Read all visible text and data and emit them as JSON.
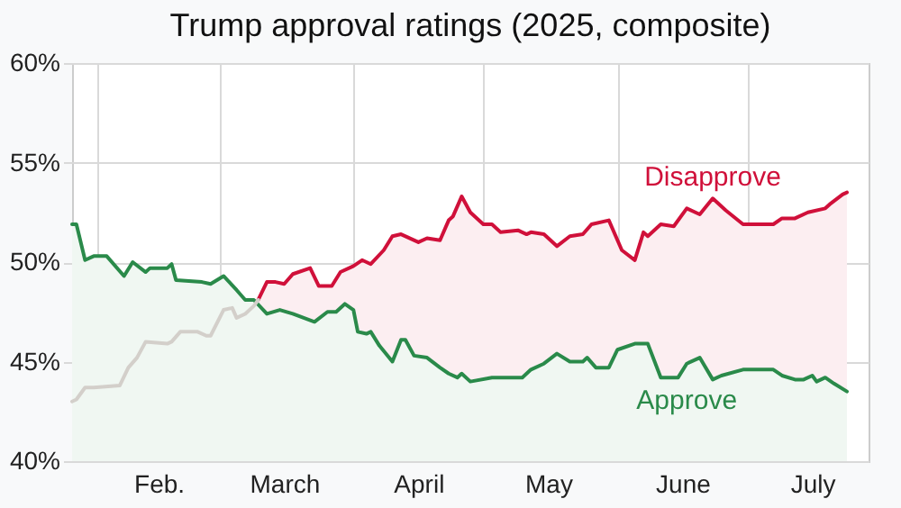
{
  "chart_data": {
    "type": "area",
    "title": "Trump approval ratings (2025, composite)",
    "xlim": [
      "2025-01-26",
      "2025-07-29"
    ],
    "xticks": [
      {
        "value": "2025-02-01",
        "label": null
      },
      {
        "value": "2025-02-15",
        "label": "Feb."
      },
      {
        "value": "2025-03-01",
        "label": null
      },
      {
        "value": "2025-03-16",
        "label": "March"
      },
      {
        "value": "2025-04-01",
        "label": null
      },
      {
        "value": "2025-04-16",
        "label": "April"
      },
      {
        "value": "2025-05-01",
        "label": null
      },
      {
        "value": "2025-05-16",
        "label": "May"
      },
      {
        "value": "2025-06-01",
        "label": null
      },
      {
        "value": "2025-06-16",
        "label": "June"
      },
      {
        "value": "2025-07-01",
        "label": null
      },
      {
        "value": "2025-07-16",
        "label": "July"
      }
    ],
    "ylim": [
      40,
      60
    ],
    "yticks": [
      {
        "value": 40,
        "label": "40%"
      },
      {
        "value": 45,
        "label": "45%"
      },
      {
        "value": 50,
        "label": "50%"
      },
      {
        "value": 55,
        "label": "55%"
      },
      {
        "value": 60,
        "label": "60%"
      }
    ],
    "grid": true,
    "series": [
      {
        "name": "Disapprove",
        "color": "#d0103a",
        "x": [
          "2025-03-10",
          "2025-03-12",
          "2025-03-14",
          "2025-03-16",
          "2025-03-18",
          "2025-03-22",
          "2025-03-24",
          "2025-03-27",
          "2025-03-29",
          "2025-04-01",
          "2025-04-03",
          "2025-04-05",
          "2025-04-08",
          "2025-04-10",
          "2025-04-12",
          "2025-04-16",
          "2025-04-18",
          "2025-04-21",
          "2025-04-23",
          "2025-04-24",
          "2025-04-26",
          "2025-04-28",
          "2025-05-01",
          "2025-05-03",
          "2025-05-05",
          "2025-05-09",
          "2025-05-11",
          "2025-05-12",
          "2025-05-15",
          "2025-05-18",
          "2025-05-21",
          "2025-05-24",
          "2025-05-26",
          "2025-05-30",
          "2025-06-02",
          "2025-06-05",
          "2025-06-07",
          "2025-06-08",
          "2025-06-11",
          "2025-06-14",
          "2025-06-17",
          "2025-06-20",
          "2025-06-23",
          "2025-06-26",
          "2025-06-30",
          "2025-07-07",
          "2025-07-09",
          "2025-07-12",
          "2025-07-15",
          "2025-07-19",
          "2025-07-20",
          "2025-07-23",
          "2025-07-24"
        ],
        "values": [
          48.1,
          49.0,
          49.0,
          48.9,
          49.4,
          49.7,
          48.8,
          48.8,
          49.5,
          49.8,
          50.1,
          49.9,
          50.6,
          51.3,
          51.4,
          51.0,
          51.2,
          51.1,
          52.1,
          52.3,
          53.3,
          52.5,
          51.9,
          51.9,
          51.5,
          51.6,
          51.4,
          51.5,
          51.4,
          50.8,
          51.3,
          51.4,
          51.9,
          52.1,
          50.6,
          50.1,
          51.5,
          51.3,
          51.9,
          51.8,
          52.7,
          52.4,
          53.2,
          52.6,
          51.9,
          51.9,
          52.2,
          52.2,
          52.5,
          52.7,
          52.9,
          53.4,
          53.5
        ]
      },
      {
        "name": "Approve",
        "color": "#2a8a4a",
        "x": [
          "2025-01-26",
          "2025-01-27",
          "2025-01-29",
          "2025-01-31",
          "2025-02-03",
          "2025-02-07",
          "2025-02-09",
          "2025-02-12",
          "2025-02-13",
          "2025-02-17",
          "2025-02-18",
          "2025-02-19",
          "2025-02-25",
          "2025-02-27",
          "2025-03-02",
          "2025-03-05",
          "2025-03-07",
          "2025-03-09",
          "2025-03-12",
          "2025-03-15",
          "2025-03-18",
          "2025-03-23",
          "2025-03-26",
          "2025-03-28",
          "2025-03-30",
          "2025-04-01",
          "2025-04-02",
          "2025-04-04",
          "2025-04-05",
          "2025-04-07",
          "2025-04-10",
          "2025-04-12",
          "2025-04-13",
          "2025-04-15",
          "2025-04-18",
          "2025-04-21",
          "2025-04-23",
          "2025-04-25",
          "2025-04-26",
          "2025-04-28",
          "2025-05-03",
          "2025-05-07",
          "2025-05-10",
          "2025-05-12",
          "2025-05-15",
          "2025-05-18",
          "2025-05-21",
          "2025-05-24",
          "2025-05-25",
          "2025-05-27",
          "2025-05-30",
          "2025-06-01",
          "2025-06-05",
          "2025-06-08",
          "2025-06-11",
          "2025-06-15",
          "2025-06-17",
          "2025-06-20",
          "2025-06-23",
          "2025-06-25",
          "2025-06-30",
          "2025-07-07",
          "2025-07-09",
          "2025-07-12",
          "2025-07-14",
          "2025-07-16",
          "2025-07-17",
          "2025-07-19",
          "2025-07-21",
          "2025-07-24"
        ],
        "values": [
          51.9,
          51.9,
          50.1,
          50.3,
          50.3,
          49.3,
          50.0,
          49.5,
          49.7,
          49.7,
          49.9,
          49.1,
          49.0,
          48.9,
          49.3,
          48.6,
          48.1,
          48.1,
          47.4,
          47.6,
          47.4,
          47.0,
          47.5,
          47.5,
          47.9,
          47.6,
          46.5,
          46.4,
          46.5,
          45.8,
          45.0,
          46.1,
          46.1,
          45.3,
          45.2,
          44.7,
          44.4,
          44.2,
          44.4,
          44.0,
          44.2,
          44.2,
          44.2,
          44.6,
          44.9,
          45.4,
          45.0,
          45.0,
          45.2,
          44.7,
          44.7,
          45.6,
          45.9,
          45.9,
          44.2,
          44.2,
          44.9,
          45.2,
          44.1,
          44.3,
          44.6,
          44.6,
          44.3,
          44.1,
          44.1,
          44.3,
          44.0,
          44.2,
          43.9,
          43.5
        ]
      },
      {
        "type": "line",
        "color": "#d3cfca",
        "x": [
          "2025-01-26",
          "2025-01-27",
          "2025-01-29",
          "2025-01-31",
          "2025-02-06",
          "2025-02-08",
          "2025-02-10",
          "2025-02-12",
          "2025-02-17",
          "2025-02-18",
          "2025-02-20",
          "2025-02-24",
          "2025-02-26",
          "2025-02-27",
          "2025-03-02",
          "2025-03-04",
          "2025-03-05",
          "2025-03-07",
          "2025-03-09",
          "2025-03-10"
        ],
        "values": [
          43.0,
          43.1,
          43.7,
          43.7,
          43.8,
          44.7,
          45.2,
          46.0,
          45.9,
          46.0,
          46.5,
          46.5,
          46.3,
          46.3,
          47.6,
          47.7,
          47.2,
          47.4,
          47.8,
          48.1
        ]
      }
    ]
  }
}
